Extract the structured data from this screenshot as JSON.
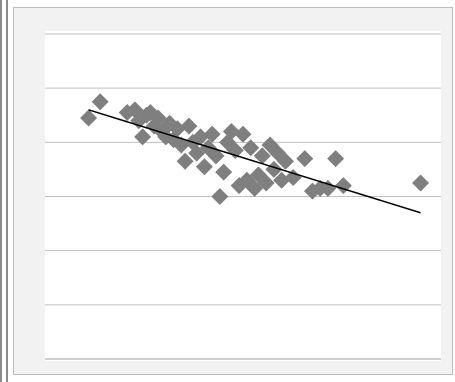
{
  "chart_data": {
    "type": "scatter",
    "title": "",
    "xlabel": "",
    "ylabel": "",
    "xlim": [
      0,
      100
    ],
    "ylim": [
      0,
      6
    ],
    "grid": true,
    "legend": "none",
    "marker": "diamond",
    "colors": {
      "points": "#7f7f7f",
      "trendline": "#000000",
      "grid": "#bfbfbf"
    },
    "series": [
      {
        "points": [
          {
            "x": 10,
            "y": 4.45
          },
          {
            "x": 13,
            "y": 4.75
          },
          {
            "x": 20,
            "y": 4.55
          },
          {
            "x": 22,
            "y": 4.6
          },
          {
            "x": 23,
            "y": 4.4
          },
          {
            "x": 24,
            "y": 4.1
          },
          {
            "x": 25,
            "y": 4.5
          },
          {
            "x": 26,
            "y": 4.55
          },
          {
            "x": 27,
            "y": 4.3
          },
          {
            "x": 28,
            "y": 4.45
          },
          {
            "x": 29,
            "y": 4.2
          },
          {
            "x": 30,
            "y": 4.1
          },
          {
            "x": 31,
            "y": 4.35
          },
          {
            "x": 32,
            "y": 4.05
          },
          {
            "x": 33,
            "y": 4.25
          },
          {
            "x": 34,
            "y": 3.95
          },
          {
            "x": 35,
            "y": 3.65
          },
          {
            "x": 36,
            "y": 4.3
          },
          {
            "x": 37,
            "y": 4.0
          },
          {
            "x": 38,
            "y": 3.8
          },
          {
            "x": 39,
            "y": 4.1
          },
          {
            "x": 40,
            "y": 3.55
          },
          {
            "x": 41,
            "y": 3.9
          },
          {
            "x": 42,
            "y": 4.15
          },
          {
            "x": 43,
            "y": 3.75
          },
          {
            "x": 44,
            "y": 3.0
          },
          {
            "x": 45,
            "y": 3.45
          },
          {
            "x": 46,
            "y": 4.0
          },
          {
            "x": 47,
            "y": 4.2
          },
          {
            "x": 48,
            "y": 3.85
          },
          {
            "x": 49,
            "y": 3.2
          },
          {
            "x": 50,
            "y": 4.15
          },
          {
            "x": 51,
            "y": 3.3
          },
          {
            "x": 52,
            "y": 3.9
          },
          {
            "x": 53,
            "y": 3.15
          },
          {
            "x": 54,
            "y": 3.4
          },
          {
            "x": 55,
            "y": 3.75
          },
          {
            "x": 56,
            "y": 3.25
          },
          {
            "x": 57,
            "y": 3.95
          },
          {
            "x": 58,
            "y": 3.5
          },
          {
            "x": 59,
            "y": 3.8
          },
          {
            "x": 60,
            "y": 3.3
          },
          {
            "x": 61,
            "y": 3.65
          },
          {
            "x": 63,
            "y": 3.35
          },
          {
            "x": 66,
            "y": 3.7
          },
          {
            "x": 68,
            "y": 3.1
          },
          {
            "x": 70,
            "y": 3.15
          },
          {
            "x": 72,
            "y": 3.15
          },
          {
            "x": 74,
            "y": 3.7
          },
          {
            "x": 76,
            "y": 3.2
          },
          {
            "x": 96,
            "y": 3.25
          }
        ]
      }
    ],
    "trendline": {
      "x": [
        10,
        96
      ],
      "y": [
        4.6,
        2.7
      ]
    }
  }
}
